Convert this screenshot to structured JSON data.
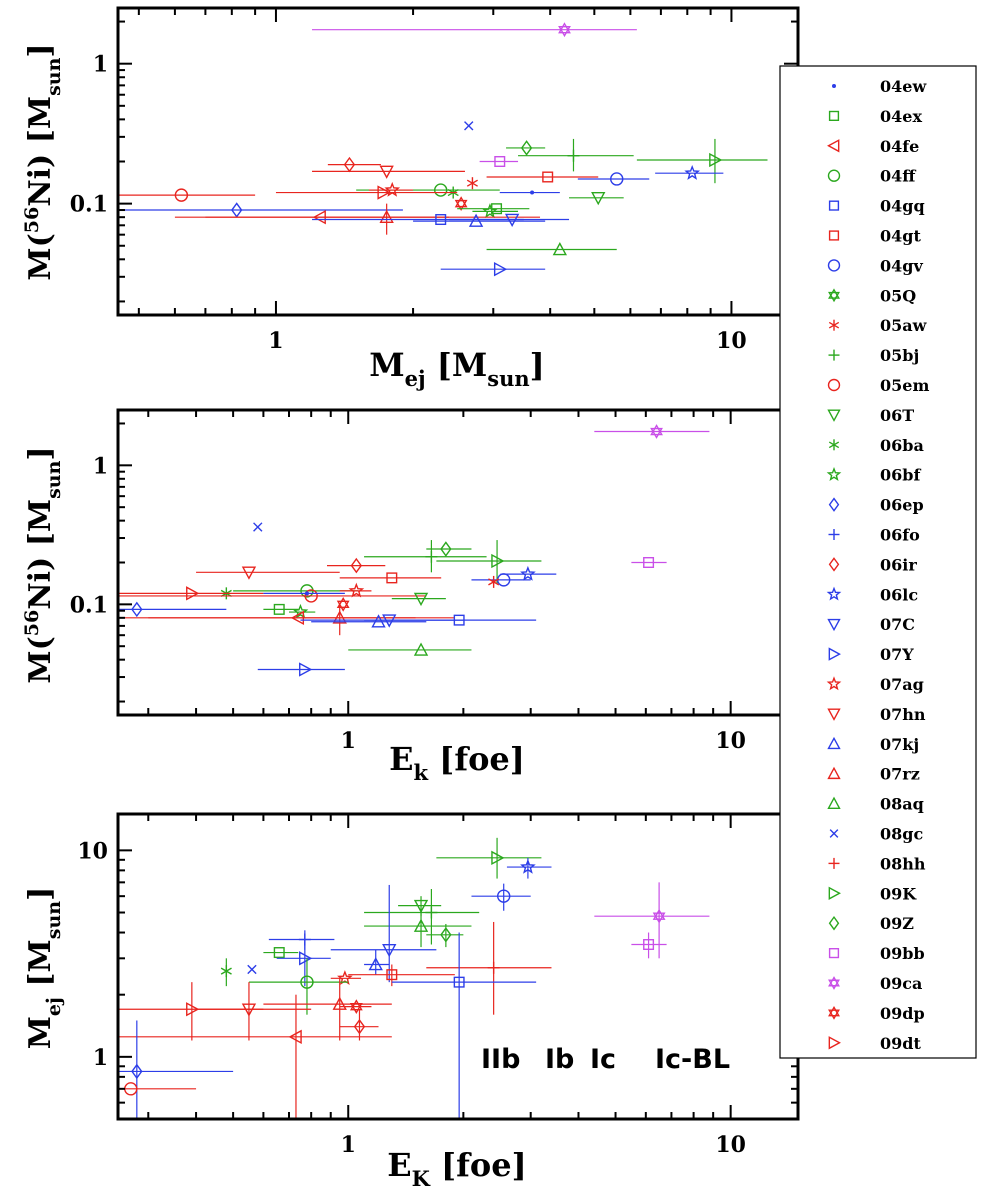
{
  "legend": {
    "entries": [
      {
        "name": "04ew",
        "marker": "dot",
        "color": "#2D3EE8"
      },
      {
        "name": "04ex",
        "marker": "square",
        "color": "#2BA81E"
      },
      {
        "name": "04fe",
        "marker": "tri-left",
        "color": "#E8251F"
      },
      {
        "name": "04ff",
        "marker": "circle",
        "color": "#2BA81E"
      },
      {
        "name": "04gq",
        "marker": "square",
        "color": "#2D3EE8"
      },
      {
        "name": "04gt",
        "marker": "square",
        "color": "#E8251F"
      },
      {
        "name": "04gv",
        "marker": "circle",
        "color": "#2D3EE8"
      },
      {
        "name": "05Q",
        "marker": "hexagram",
        "color": "#2BA81E"
      },
      {
        "name": "05aw",
        "marker": "asterisk",
        "color": "#E8251F"
      },
      {
        "name": "05bj",
        "marker": "plus",
        "color": "#2BA81E"
      },
      {
        "name": "05em",
        "marker": "circle",
        "color": "#E8251F"
      },
      {
        "name": "06T",
        "marker": "tri-down",
        "color": "#2BA81E"
      },
      {
        "name": "06ba",
        "marker": "asterisk",
        "color": "#2BA81E"
      },
      {
        "name": "06bf",
        "marker": "star",
        "color": "#2BA81E"
      },
      {
        "name": "06ep",
        "marker": "diamond",
        "color": "#2D3EE8"
      },
      {
        "name": "06fo",
        "marker": "plus",
        "color": "#2D3EE8"
      },
      {
        "name": "06ir",
        "marker": "diamond",
        "color": "#E8251F"
      },
      {
        "name": "06lc",
        "marker": "star",
        "color": "#2D3EE8"
      },
      {
        "name": "07C",
        "marker": "tri-down",
        "color": "#2D3EE8"
      },
      {
        "name": "07Y",
        "marker": "tri-right",
        "color": "#2D3EE8"
      },
      {
        "name": "07ag",
        "marker": "star",
        "color": "#E8251F"
      },
      {
        "name": "07hn",
        "marker": "tri-down",
        "color": "#E8251F"
      },
      {
        "name": "07kj",
        "marker": "tri-up",
        "color": "#2D3EE8"
      },
      {
        "name": "07rz",
        "marker": "tri-up",
        "color": "#E8251F"
      },
      {
        "name": "08aq",
        "marker": "tri-up",
        "color": "#2BA81E"
      },
      {
        "name": "08gc",
        "marker": "x",
        "color": "#2D3EE8"
      },
      {
        "name": "08hh",
        "marker": "plus",
        "color": "#E8251F"
      },
      {
        "name": "09K",
        "marker": "tri-right",
        "color": "#2BA81E"
      },
      {
        "name": "09Z",
        "marker": "diamond",
        "color": "#2BA81E"
      },
      {
        "name": "09bb",
        "marker": "square",
        "color": "#C94FE8"
      },
      {
        "name": "09ca",
        "marker": "hexagram",
        "color": "#C94FE8"
      },
      {
        "name": "09dp",
        "marker": "hexagram",
        "color": "#E8251F"
      },
      {
        "name": "09dt",
        "marker": "tri-right",
        "color": "#E8251F"
      }
    ]
  },
  "type_labels": [
    {
      "text": "IIb",
      "color": "#2BA81E"
    },
    {
      "text": "Ib",
      "color": "#2D3EE8"
    },
    {
      "text": "Ic",
      "color": "#E8251F"
    },
    {
      "text": "Ic-BL",
      "color": "#C94FE8"
    }
  ],
  "chart_data": [
    {
      "type": "scatter",
      "x_scale": "log",
      "y_scale": "log",
      "xlim": [
        0.45,
        14
      ],
      "ylim": [
        0.016,
        2.5
      ],
      "xlabel": "M_ej [M_sun]",
      "ylabel": "M(56Ni) [M_sun]",
      "x_ticks": [
        1,
        10
      ],
      "y_ticks": [
        0.1,
        1
      ],
      "points": [
        {
          "sn": "09ca",
          "x": 4.3,
          "y": 1.75,
          "xerr": [
            1.2,
            6.2
          ]
        },
        {
          "sn": "08gc",
          "x": 2.65,
          "y": 0.36
        },
        {
          "sn": "09Z",
          "x": 3.55,
          "y": 0.25,
          "xerr": [
            3.2,
            3.9
          ]
        },
        {
          "sn": "05bj",
          "x": 4.5,
          "y": 0.22,
          "xerr": [
            3.4,
            6.1
          ],
          "yerr": [
            0.17,
            0.29
          ]
        },
        {
          "sn": "09K",
          "x": 9.2,
          "y": 0.205,
          "xerr": [
            6.2,
            12.0
          ],
          "yerr": [
            0.14,
            0.29
          ]
        },
        {
          "sn": "09bb",
          "x": 3.1,
          "y": 0.2,
          "xerr": [
            2.8,
            3.4
          ]
        },
        {
          "sn": "06ir",
          "x": 1.45,
          "y": 0.19,
          "xerr": [
            1.3,
            1.7
          ]
        },
        {
          "sn": "07hn",
          "x": 1.75,
          "y": 0.17,
          "xerr": [
            1.2,
            2.6
          ]
        },
        {
          "sn": "06lc",
          "x": 8.2,
          "y": 0.165,
          "xerr": [
            6.8,
            9.6
          ]
        },
        {
          "sn": "04gt",
          "x": 3.95,
          "y": 0.155,
          "xerr": [
            2.9,
            5.1
          ]
        },
        {
          "sn": "04gv",
          "x": 5.6,
          "y": 0.15,
          "xerr": [
            4.6,
            6.6
          ]
        },
        {
          "sn": "05aw",
          "x": 2.7,
          "y": 0.14
        },
        {
          "sn": "04ff",
          "x": 2.3,
          "y": 0.125,
          "xerr": [
            1.5,
            3.1
          ]
        },
        {
          "sn": "07ag",
          "x": 1.8,
          "y": 0.125,
          "xerr": [
            1.6,
            2.0
          ]
        },
        {
          "sn": "06ba",
          "x": 2.45,
          "y": 0.12
        },
        {
          "sn": "05em",
          "x": 0.62,
          "y": 0.115,
          "xerr": [
            0.45,
            0.9
          ]
        },
        {
          "sn": "09dt",
          "x": 1.72,
          "y": 0.12,
          "xerr": [
            1.0,
            2.5
          ]
        },
        {
          "sn": "04ew",
          "x": 3.65,
          "y": 0.12,
          "xerr": [
            3.1,
            4.2
          ]
        },
        {
          "sn": "06T",
          "x": 5.1,
          "y": 0.11,
          "xerr": [
            4.4,
            5.8
          ]
        },
        {
          "sn": "09dp",
          "x": 2.55,
          "y": 0.1
        },
        {
          "sn": "04ex",
          "x": 3.05,
          "y": 0.092,
          "xerr": [
            2.5,
            3.6
          ]
        },
        {
          "sn": "06bf",
          "x": 2.95,
          "y": 0.088,
          "xerr": [
            2.7,
            3.4
          ]
        },
        {
          "sn": "06ep",
          "x": 0.82,
          "y": 0.09,
          "xerr": [
            0.45,
            1.9
          ]
        },
        {
          "sn": "04fe",
          "x": 1.25,
          "y": 0.08,
          "xerr": [
            0.6,
            2.4
          ]
        },
        {
          "sn": "07rz",
          "x": 1.75,
          "y": 0.08,
          "xerr": [
            0.7,
            3.8
          ],
          "yerr": [
            0.06,
            0.1
          ]
        },
        {
          "sn": "04gq",
          "x": 2.3,
          "y": 0.077,
          "xerr": [
            1.2,
            3.5
          ]
        },
        {
          "sn": "07kj",
          "x": 2.75,
          "y": 0.075,
          "xerr": [
            2.0,
            3.9
          ]
        },
        {
          "sn": "07C",
          "x": 3.3,
          "y": 0.077,
          "xerr": [
            2.4,
            4.4
          ]
        },
        {
          "sn": "08aq",
          "x": 4.2,
          "y": 0.047,
          "xerr": [
            2.9,
            5.6
          ]
        },
        {
          "sn": "07Y",
          "x": 3.1,
          "y": 0.034,
          "xerr": [
            2.3,
            3.9
          ]
        }
      ]
    },
    {
      "type": "scatter",
      "x_scale": "log",
      "y_scale": "log",
      "xlim": [
        0.25,
        15
      ],
      "ylim": [
        0.016,
        2.5
      ],
      "xlabel": "E_k [foe]",
      "ylabel": "M(56Ni) [M_sun]",
      "x_ticks": [
        1,
        10
      ],
      "y_ticks": [
        0.1,
        1
      ],
      "points": [
        {
          "sn": "09ca",
          "x": 6.4,
          "y": 1.75,
          "xerr": [
            4.4,
            8.8
          ]
        },
        {
          "sn": "08gc",
          "x": 0.58,
          "y": 0.36
        },
        {
          "sn": "09Z",
          "x": 1.8,
          "y": 0.25,
          "xerr": [
            1.6,
            2.1
          ]
        },
        {
          "sn": "05bj",
          "x": 1.65,
          "y": 0.22,
          "xerr": [
            1.1,
            2.3
          ],
          "yerr": [
            0.17,
            0.29
          ]
        },
        {
          "sn": "09K",
          "x": 2.45,
          "y": 0.205,
          "xerr": [
            1.7,
            3.2
          ],
          "yerr": [
            0.14,
            0.29
          ]
        },
        {
          "sn": "09bb",
          "x": 6.1,
          "y": 0.2,
          "xerr": [
            5.5,
            6.8
          ]
        },
        {
          "sn": "06ir",
          "x": 1.05,
          "y": 0.19,
          "xerr": [
            0.88,
            1.25
          ]
        },
        {
          "sn": "07hn",
          "x": 0.55,
          "y": 0.17,
          "xerr": [
            0.4,
            0.95
          ]
        },
        {
          "sn": "06lc",
          "x": 2.95,
          "y": 0.165,
          "xerr": [
            2.5,
            3.5
          ]
        },
        {
          "sn": "04gt",
          "x": 1.3,
          "y": 0.155,
          "xerr": [
            0.95,
            1.75
          ]
        },
        {
          "sn": "04gv",
          "x": 2.55,
          "y": 0.15,
          "xerr": [
            2.1,
            3.0
          ]
        },
        {
          "sn": "05aw",
          "x": 2.4,
          "y": 0.145
        },
        {
          "sn": "04ff",
          "x": 0.78,
          "y": 0.125,
          "xerr": [
            0.5,
            1.06
          ]
        },
        {
          "sn": "07ag",
          "x": 1.05,
          "y": 0.125,
          "xerr": [
            0.95,
            1.15
          ]
        },
        {
          "sn": "06ba",
          "x": 0.48,
          "y": 0.12
        },
        {
          "sn": "05em",
          "x": 0.8,
          "y": 0.115,
          "xerr": [
            0.25,
            1.6
          ]
        },
        {
          "sn": "09dt",
          "x": 0.39,
          "y": 0.12,
          "xerr": [
            0.25,
            0.6
          ]
        },
        {
          "sn": "04ew",
          "x": 0.78,
          "y": 0.12,
          "xerr": [
            0.6,
            0.98
          ]
        },
        {
          "sn": "06T",
          "x": 1.55,
          "y": 0.11,
          "xerr": [
            1.3,
            1.8
          ]
        },
        {
          "sn": "09dp",
          "x": 0.97,
          "y": 0.1
        },
        {
          "sn": "04ex",
          "x": 0.66,
          "y": 0.092,
          "xerr": [
            0.6,
            0.74
          ]
        },
        {
          "sn": "06bf",
          "x": 0.75,
          "y": 0.088,
          "xerr": [
            0.7,
            0.82
          ]
        },
        {
          "sn": "06ep",
          "x": 0.28,
          "y": 0.092,
          "xerr": [
            0.25,
            0.48
          ]
        },
        {
          "sn": "04fe",
          "x": 0.74,
          "y": 0.08,
          "xerr": [
            0.25,
            1.5
          ]
        },
        {
          "sn": "07rz",
          "x": 0.95,
          "y": 0.08,
          "xerr": [
            0.3,
            1.9
          ],
          "yerr": [
            0.06,
            0.1
          ]
        },
        {
          "sn": "04gq",
          "x": 1.95,
          "y": 0.077,
          "xerr": [
            1.1,
            3.1
          ]
        },
        {
          "sn": "07kj",
          "x": 1.2,
          "y": 0.075,
          "xerr": [
            0.8,
            1.6
          ]
        },
        {
          "sn": "07C",
          "x": 1.28,
          "y": 0.077,
          "xerr": [
            0.75,
            2.0
          ]
        },
        {
          "sn": "08aq",
          "x": 1.55,
          "y": 0.047,
          "xerr": [
            1.0,
            2.1
          ]
        },
        {
          "sn": "07Y",
          "x": 0.77,
          "y": 0.034,
          "xerr": [
            0.58,
            0.98
          ]
        }
      ]
    },
    {
      "type": "scatter",
      "x_scale": "log",
      "y_scale": "log",
      "xlim": [
        0.25,
        15
      ],
      "ylim": [
        0.5,
        15
      ],
      "xlabel": "E_K [foe]",
      "ylabel": "M_ej [M_sun]",
      "x_ticks": [
        1,
        10
      ],
      "y_ticks": [
        1,
        10
      ],
      "points": [
        {
          "sn": "09K",
          "x": 2.45,
          "y": 9.2,
          "xerr": [
            1.7,
            3.2
          ],
          "yerr": [
            7.3,
            11.5
          ]
        },
        {
          "sn": "06lc",
          "x": 2.95,
          "y": 8.3,
          "xerr": [
            2.6,
            3.4
          ],
          "yerr": [
            7.3,
            9.2
          ]
        },
        {
          "sn": "04gv",
          "x": 2.55,
          "y": 6.0,
          "xerr": [
            2.1,
            3.0
          ],
          "yerr": [
            5.1,
            6.9
          ]
        },
        {
          "sn": "06T",
          "x": 1.55,
          "y": 5.4,
          "xerr": [
            1.35,
            1.75
          ],
          "yerr": [
            4.8,
            6.0
          ]
        },
        {
          "sn": "05bj",
          "x": 1.65,
          "y": 5.0,
          "xerr": [
            1.1,
            2.2
          ],
          "yerr": [
            3.5,
            6.5
          ]
        },
        {
          "sn": "09ca",
          "x": 6.5,
          "y": 4.8,
          "xerr": [
            4.4,
            8.8
          ],
          "yerr": [
            3.0,
            7.0
          ]
        },
        {
          "sn": "08aq",
          "x": 1.55,
          "y": 4.3,
          "xerr": [
            1.1,
            2.1
          ],
          "yerr": [
            3.4,
            5.2
          ]
        },
        {
          "sn": "09Z",
          "x": 1.8,
          "y": 3.9,
          "xerr": [
            1.6,
            2.0
          ],
          "yerr": [
            3.4,
            4.4
          ]
        },
        {
          "sn": "06fo",
          "x": 0.77,
          "y": 3.7,
          "xerr": [
            0.62,
            0.92
          ],
          "yerr": [
            3.3,
            4.1
          ]
        },
        {
          "sn": "09bb",
          "x": 6.1,
          "y": 3.5,
          "xerr": [
            5.5,
            6.8
          ],
          "yerr": [
            3.0,
            4.0
          ]
        },
        {
          "sn": "07C",
          "x": 1.28,
          "y": 3.3,
          "xerr": [
            0.9,
            1.7
          ],
          "yerr": [
            2.3,
            6.8
          ]
        },
        {
          "sn": "04ex",
          "x": 0.66,
          "y": 3.2,
          "xerr": [
            0.6,
            0.74
          ]
        },
        {
          "sn": "07Y",
          "x": 0.77,
          "y": 3.0,
          "xerr": [
            0.65,
            0.9
          ],
          "yerr": [
            2.2,
            3.6
          ]
        },
        {
          "sn": "07kj",
          "x": 1.18,
          "y": 2.8,
          "xerr": [
            1.1,
            1.28
          ],
          "yerr": [
            2.5,
            3.3
          ]
        },
        {
          "sn": "08gc",
          "x": 0.56,
          "y": 2.65
        },
        {
          "sn": "06ba",
          "x": 0.48,
          "y": 2.6,
          "yerr": [
            2.2,
            3.0
          ]
        },
        {
          "sn": "08hh",
          "x": 2.4,
          "y": 2.7,
          "xerr": [
            1.6,
            3.4
          ],
          "yerr": [
            1.6,
            4.5
          ]
        },
        {
          "sn": "04gt",
          "x": 1.3,
          "y": 2.5,
          "xerr": [
            1.0,
            1.9
          ],
          "yerr": [
            2.2,
            2.8
          ]
        },
        {
          "sn": "07ag",
          "x": 0.98,
          "y": 2.4,
          "xerr": [
            0.9,
            1.08
          ]
        },
        {
          "sn": "04gq",
          "x": 1.95,
          "y": 2.3,
          "xerr": [
            1.3,
            3.1
          ],
          "yerr": [
            0.5,
            4.0
          ]
        },
        {
          "sn": "04ff",
          "x": 0.78,
          "y": 2.3,
          "xerr": [
            0.55,
            1.0
          ],
          "yerr": [
            1.6,
            3.0
          ]
        },
        {
          "sn": "09dt",
          "x": 0.39,
          "y": 1.7,
          "xerr": [
            0.25,
            0.6
          ],
          "yerr": [
            1.2,
            2.3
          ]
        },
        {
          "sn": "07hn",
          "x": 0.55,
          "y": 1.7,
          "xerr": [
            0.4,
            0.8
          ],
          "yerr": [
            1.2,
            2.3
          ]
        },
        {
          "sn": "07rz",
          "x": 0.95,
          "y": 1.8,
          "xerr": [
            0.6,
            1.3
          ],
          "yerr": [
            1.2,
            2.4
          ]
        },
        {
          "sn": "09dp",
          "x": 1.05,
          "y": 1.75,
          "xerr": [
            0.95,
            1.15
          ]
        },
        {
          "sn": "06ir",
          "x": 1.07,
          "y": 1.4,
          "xerr": [
            0.95,
            1.2
          ],
          "yerr": [
            1.2,
            1.7
          ]
        },
        {
          "sn": "04fe",
          "x": 0.73,
          "y": 1.25,
          "xerr": [
            0.25,
            1.3
          ],
          "yerr": [
            0.5,
            2.0
          ]
        },
        {
          "sn": "06ep",
          "x": 0.28,
          "y": 0.85,
          "xerr": [
            0.25,
            0.5
          ],
          "yerr": [
            0.5,
            1.5
          ]
        },
        {
          "sn": "05em",
          "x": 0.27,
          "y": 0.7,
          "xerr": [
            0.25,
            0.4
          ]
        }
      ]
    }
  ]
}
